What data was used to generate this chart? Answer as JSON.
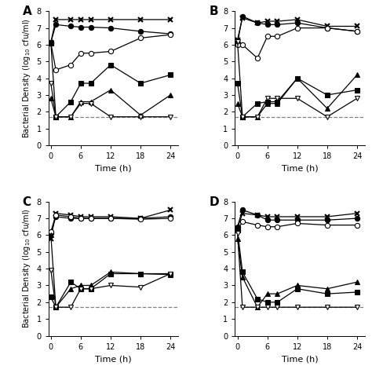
{
  "time": [
    0,
    1,
    4,
    6,
    8,
    12,
    18,
    24
  ],
  "panels": {
    "A": {
      "label": "A",
      "series": {
        "x_cross": [
          6.15,
          7.5,
          7.5,
          7.5,
          7.5,
          7.5,
          7.5,
          7.5
        ],
        "filled_circle": [
          6.15,
          7.2,
          7.1,
          7.05,
          7.05,
          7.0,
          6.8,
          6.65
        ],
        "open_circle": [
          6.1,
          4.5,
          4.8,
          5.5,
          5.5,
          5.6,
          6.4,
          6.6
        ],
        "filled_square": [
          6.1,
          1.7,
          2.6,
          3.7,
          3.7,
          4.8,
          3.7,
          4.2
        ],
        "filled_triangle": [
          2.8,
          1.7,
          1.7,
          2.6,
          2.6,
          3.3,
          1.8,
          3.0
        ],
        "open_triangle": [
          3.7,
          1.7,
          1.7,
          2.5,
          2.5,
          1.7,
          1.7,
          1.7
        ]
      }
    },
    "B": {
      "label": "B",
      "series": {
        "x_cross": [
          6.3,
          7.6,
          7.3,
          7.4,
          7.4,
          7.5,
          7.1,
          7.1
        ],
        "filled_circle": [
          6.1,
          7.7,
          7.3,
          7.2,
          7.2,
          7.3,
          7.0,
          6.8
        ],
        "open_circle": [
          6.0,
          6.0,
          5.2,
          6.5,
          6.5,
          7.0,
          7.0,
          6.8
        ],
        "filled_square": [
          3.7,
          1.7,
          2.5,
          2.6,
          2.6,
          4.0,
          3.0,
          3.3
        ],
        "filled_triangle": [
          2.5,
          1.7,
          1.7,
          2.5,
          2.5,
          4.0,
          2.2,
          4.2
        ],
        "open_triangle": [
          6.2,
          1.7,
          1.7,
          2.8,
          2.8,
          2.8,
          1.7,
          2.8
        ]
      }
    },
    "C": {
      "label": "C",
      "series": {
        "x_cross": [
          5.8,
          7.3,
          7.2,
          7.1,
          7.1,
          7.1,
          7.0,
          7.5
        ],
        "filled_circle": [
          6.1,
          7.1,
          7.0,
          7.0,
          7.0,
          7.0,
          7.0,
          7.1
        ],
        "open_circle": [
          6.2,
          7.2,
          7.1,
          7.0,
          7.0,
          7.0,
          6.95,
          7.0
        ],
        "filled_square": [
          2.3,
          1.7,
          3.2,
          2.8,
          2.8,
          3.7,
          3.7,
          3.7
        ],
        "filled_triangle": [
          6.0,
          1.7,
          2.8,
          3.0,
          3.0,
          3.8,
          3.7,
          3.65
        ],
        "open_triangle": [
          3.9,
          1.7,
          1.7,
          2.8,
          2.8,
          3.0,
          2.9,
          3.7
        ]
      }
    },
    "D": {
      "label": "D",
      "series": {
        "x_cross": [
          6.4,
          7.3,
          7.2,
          7.1,
          7.1,
          7.1,
          7.1,
          7.3
        ],
        "filled_circle": [
          6.5,
          7.5,
          7.2,
          6.9,
          6.9,
          6.9,
          6.9,
          7.0
        ],
        "open_circle": [
          6.3,
          6.8,
          6.6,
          6.5,
          6.5,
          6.7,
          6.6,
          6.6
        ],
        "filled_square": [
          6.3,
          3.8,
          2.2,
          2.0,
          2.0,
          2.8,
          2.5,
          2.6
        ],
        "filled_triangle": [
          5.8,
          3.5,
          1.7,
          2.5,
          2.5,
          3.0,
          2.8,
          3.2
        ],
        "open_triangle": [
          6.1,
          1.7,
          1.7,
          1.7,
          1.7,
          1.7,
          1.7,
          1.7
        ]
      }
    }
  },
  "dashed_line_y": 1.7,
  "ylim": [
    0,
    8
  ],
  "yticks": [
    0,
    1,
    2,
    3,
    4,
    5,
    6,
    7,
    8
  ],
  "xticks": [
    0,
    6,
    12,
    18,
    24
  ],
  "xlim": [
    -0.5,
    25.5
  ],
  "xlabel": "Time (h)",
  "ylabel_left": "Bacterial Density (log$_{10}$ cfu/ml)"
}
